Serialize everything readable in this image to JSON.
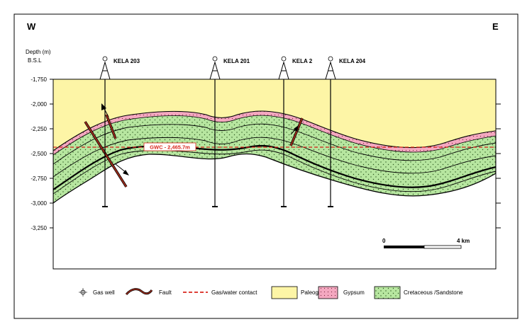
{
  "direction": {
    "west": "W",
    "east": "E"
  },
  "axis": {
    "title_line1": "Depth (m)",
    "title_line2": "B.S.L",
    "ticks": [
      "-1,750",
      "-2,000",
      "-2,250",
      "-2,500",
      "-2,750",
      "-3,000",
      "-3,250"
    ]
  },
  "wells": [
    {
      "name": "KELA 203"
    },
    {
      "name": "KELA 201"
    },
    {
      "name": "KELA 2"
    },
    {
      "name": "KELA 204"
    }
  ],
  "gwc_label": "GWC - 2,465.7m",
  "scale_bar": {
    "start": "0",
    "end": "4 km"
  },
  "legend": {
    "gas_well": "Gas well",
    "fault": "Fault",
    "gas_water_contact": "Gas/water contact",
    "paleogene": "Paleogene",
    "gypsum": "Gypsum",
    "cretaceous": "Cretaceous /Sandstone"
  },
  "colors": {
    "paleogene": "#fdf5a6",
    "cretaceous": "#b7e6a0",
    "gypsum": "#f4a8c0",
    "fault": "#9b2a1a",
    "gwc": "#d9261c"
  }
}
